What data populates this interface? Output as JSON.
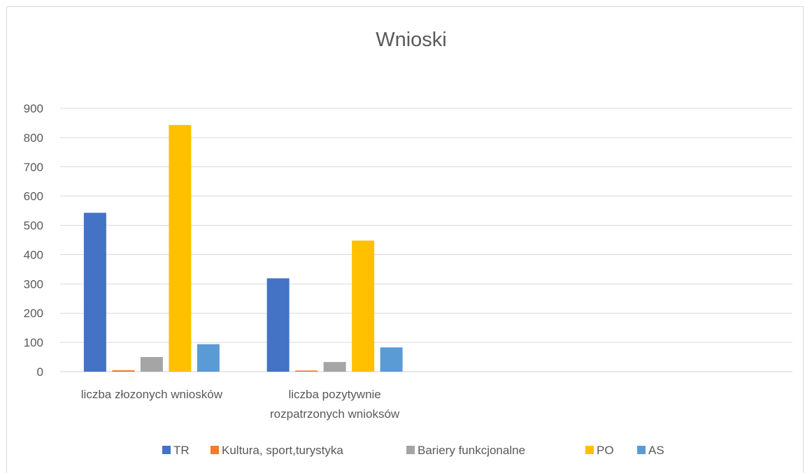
{
  "chart_data": {
    "type": "bar",
    "title": "Wnioski",
    "categories": [
      [
        "liczba złozonych wniosków"
      ],
      [
        "liczba pozytywnie",
        "rozpatrzonych wnioksów"
      ]
    ],
    "series": [
      {
        "name": "TR",
        "color": "#4472C4",
        "values": [
          543,
          319
        ]
      },
      {
        "name": "Kultura, sport,turystyka",
        "color": "#ED7D31",
        "values": [
          5,
          4
        ]
      },
      {
        "name": "Bariery funkcjonalne",
        "color": "#A5A5A5",
        "values": [
          50,
          33
        ]
      },
      {
        "name": "PO",
        "color": "#FFC000",
        "values": [
          843,
          448
        ]
      },
      {
        "name": "AS",
        "color": "#5B9BD5",
        "values": [
          94,
          83
        ]
      }
    ],
    "yticks": [
      0,
      100,
      200,
      300,
      400,
      500,
      600,
      700,
      800,
      900
    ],
    "ylim": [
      0,
      900
    ],
    "grid": true,
    "legend_position": "bottom"
  }
}
